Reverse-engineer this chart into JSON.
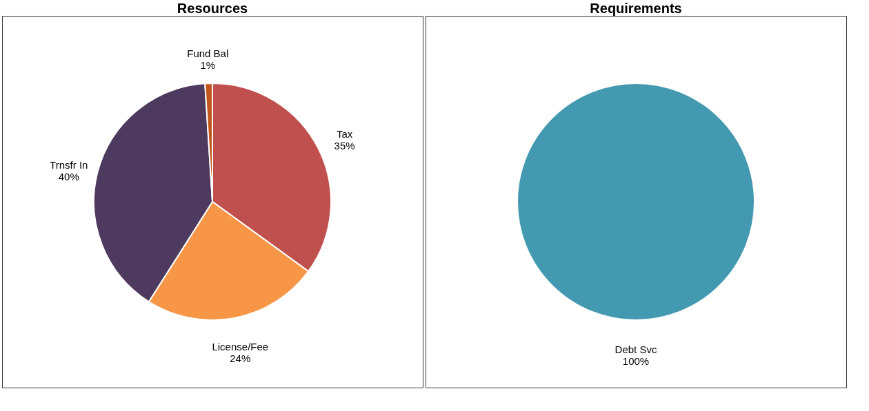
{
  "chart_data": [
    {
      "type": "pie",
      "title": "Resources",
      "categories": [
        "Tax",
        "License/Fee",
        "Trnsfr In",
        "Fund Bal"
      ],
      "values": [
        35,
        24,
        40,
        1
      ],
      "value_labels": [
        "35%",
        "24%",
        "40%",
        "1%"
      ],
      "colors": [
        "#c0504d",
        "#f79646",
        "#4e3a5f",
        "#c0561b"
      ],
      "legend": false
    },
    {
      "type": "pie",
      "title": "Requirements",
      "categories": [
        "Debt Svc"
      ],
      "values": [
        100
      ],
      "value_labels": [
        "100%"
      ],
      "colors": [
        "#4399b0"
      ],
      "legend": false
    }
  ]
}
